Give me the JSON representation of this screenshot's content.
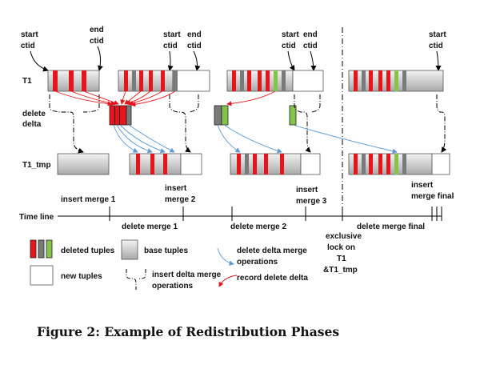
{
  "labels": {
    "start": "start",
    "ctid": "ctid",
    "end": "end",
    "t1": "T1",
    "delete": "delete",
    "delta": "delta",
    "t1_tmp": "T1_tmp",
    "time_line": "Time line",
    "insert_merge_1": "insert merge 1",
    "insert": "insert",
    "merge_2": "merge 2",
    "merge_3": "merge 3",
    "merge_final": "merge final",
    "delete_merge_1": "delete merge 1",
    "delete_merge_2": "delete merge 2",
    "delete_merge_final": "delete merge final",
    "exclusive": "exclusive",
    "lock_on": "lock on",
    "t1_amp_tmp": "&T1_tmp"
  },
  "legend": {
    "deleted_tuples": "deleted tuples",
    "base_tuples": "base tuples",
    "new_tuples": "new tuples",
    "delete_delta_merge": "delete delta merge",
    "operations": "operations",
    "insert_delta_merge": "insert delta merge",
    "record_delete_delta": "record delete delta"
  },
  "caption": "Figure 2: Example of Redistribution Phases",
  "colors": {
    "deleted_red": "#e8141c",
    "deleted_grey": "#7a7a7a",
    "deleted_green": "#86c34a",
    "base_fill": "#d3d3d3",
    "arrow_red": "#e8141c",
    "arrow_blue": "#5b9bd5",
    "line": "#000000"
  }
}
